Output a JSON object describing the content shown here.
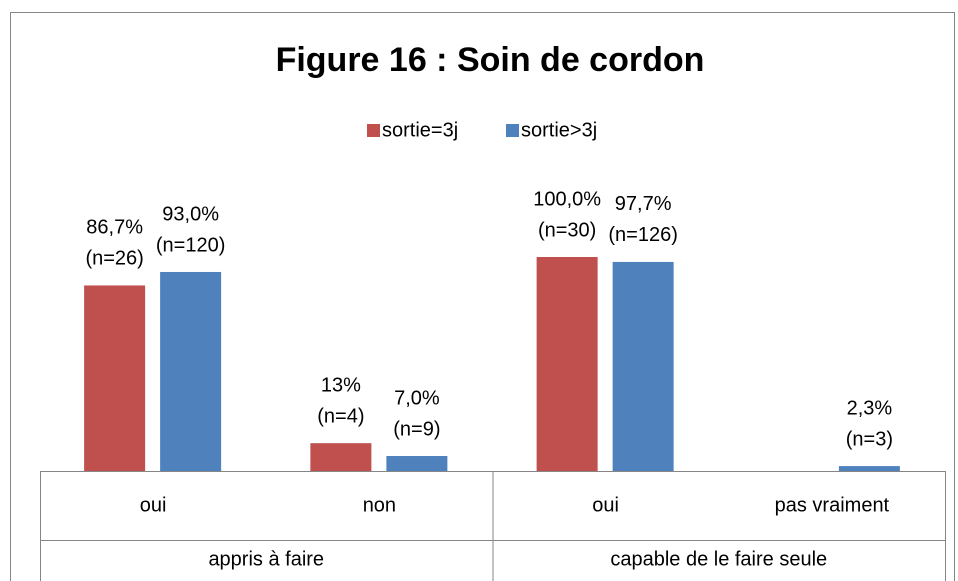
{
  "chart_data": {
    "type": "bar",
    "title": "Figure 16 : Soin de cordon",
    "groups": [
      {
        "name": "appris à faire",
        "categories": [
          "oui",
          "non"
        ]
      },
      {
        "name": "capable de le faire seule",
        "categories": [
          "oui",
          "pas vraiment"
        ]
      }
    ],
    "series": [
      {
        "name": "sortie=3j",
        "color": "#c0504d",
        "values": [
          86.7,
          13,
          100.0,
          null
        ],
        "value_labels": [
          [
            "86,7%",
            "(n=26)"
          ],
          [
            "13%",
            "(n=4)"
          ],
          [
            "100,0%",
            "(n=30)"
          ],
          null
        ]
      },
      {
        "name": "sortie>3j",
        "color": "#4f81bd",
        "values": [
          93.0,
          7.0,
          97.7,
          2.3
        ],
        "value_labels": [
          [
            "93,0%",
            "(n=120)"
          ],
          [
            "7,0%",
            "(n=9)"
          ],
          [
            "97,7%",
            "(n=126)"
          ],
          [
            "2,3%",
            "(n=3)"
          ]
        ]
      }
    ],
    "ylim": [
      0,
      100
    ],
    "legend": "top"
  }
}
